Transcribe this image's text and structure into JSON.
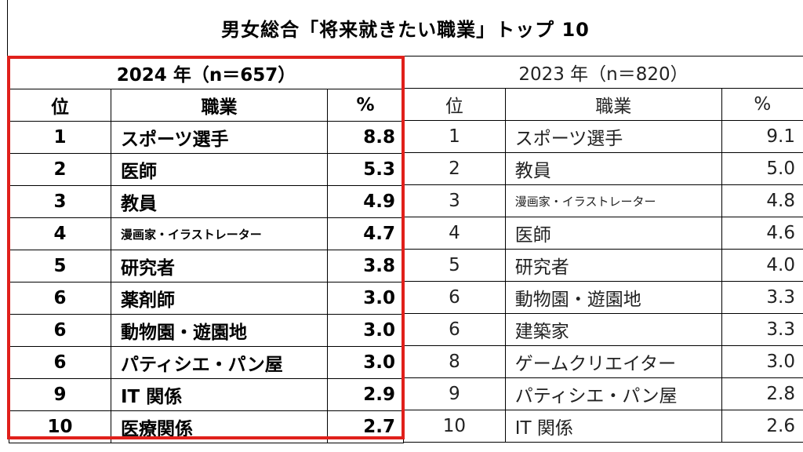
{
  "title": "男女総合「将来就きたい職業」トップ 10",
  "highlight_color": "#e0201b",
  "tables": {
    "y2024": {
      "heading": "2024 年（n＝657）",
      "columns": {
        "rank": "位",
        "job": "職業",
        "pct": "%"
      },
      "rows": [
        {
          "rank": "1",
          "job": "スポーツ選手",
          "pct": "8.8"
        },
        {
          "rank": "2",
          "job": "医師",
          "pct": "5.3"
        },
        {
          "rank": "3",
          "job": "教員",
          "pct": "4.9"
        },
        {
          "rank": "4",
          "job": "漫画家・イラストレーター",
          "pct": "4.7"
        },
        {
          "rank": "5",
          "job": "研究者",
          "pct": "3.8"
        },
        {
          "rank": "6",
          "job": "薬剤師",
          "pct": "3.0"
        },
        {
          "rank": "6",
          "job": "動物園・遊園地",
          "pct": "3.0"
        },
        {
          "rank": "6",
          "job": "パティシエ・パン屋",
          "pct": "3.0"
        },
        {
          "rank": "9",
          "job": "IT 関係",
          "pct": "2.9"
        },
        {
          "rank": "10",
          "job": "医療関係",
          "pct": "2.7"
        }
      ]
    },
    "y2023": {
      "heading": "2023 年（n＝820）",
      "columns": {
        "rank": "位",
        "job": "職業",
        "pct": "%"
      },
      "rows": [
        {
          "rank": "1",
          "job": "スポーツ選手",
          "pct": "9.1"
        },
        {
          "rank": "2",
          "job": "教員",
          "pct": "5.0"
        },
        {
          "rank": "3",
          "job": "漫画家・イラストレーター",
          "pct": "4.8"
        },
        {
          "rank": "4",
          "job": "医師",
          "pct": "4.6"
        },
        {
          "rank": "5",
          "job": "研究者",
          "pct": "4.0"
        },
        {
          "rank": "6",
          "job": "動物園・遊園地",
          "pct": "3.3"
        },
        {
          "rank": "6",
          "job": "建築家",
          "pct": "3.3"
        },
        {
          "rank": "8",
          "job": "ゲームクリエイター",
          "pct": "3.0"
        },
        {
          "rank": "9",
          "job": "パティシエ・パン屋",
          "pct": "2.8"
        },
        {
          "rank": "10",
          "job": "IT 関係",
          "pct": "2.6"
        }
      ]
    }
  }
}
